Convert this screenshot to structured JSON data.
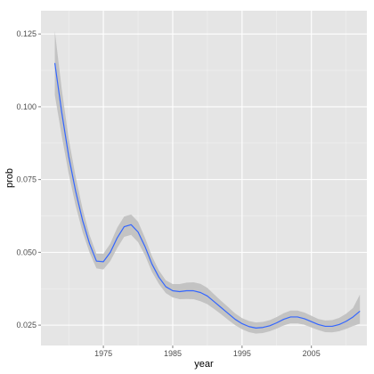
{
  "chart_data": {
    "type": "line",
    "title": "",
    "xlabel": "year",
    "ylabel": "prob",
    "xlim": [
      1966,
      2013
    ],
    "ylim": [
      0.018,
      0.133
    ],
    "x_ticks": [
      1975,
      1985,
      1995,
      2005
    ],
    "x_tick_labels": [
      "1975",
      "1985",
      "1995",
      "2005"
    ],
    "y_ticks": [
      0.025,
      0.05,
      0.075,
      0.1,
      0.125
    ],
    "y_tick_labels": [
      "0.025",
      "0.050",
      "0.075",
      "0.100",
      "0.125"
    ],
    "grid": true,
    "background_color": "#e5e5e5",
    "grid_color": "#ffffff",
    "line_color": "#3366ff",
    "ribbon_color": "#bdbdbd",
    "series": [
      {
        "x": [
          1968,
          1969,
          1970,
          1971,
          1972,
          1973,
          1974,
          1975,
          1976,
          1977,
          1978,
          1979,
          1980,
          1981,
          1982,
          1983,
          1984,
          1985,
          1986,
          1987,
          1988,
          1989,
          1990,
          1991,
          1992,
          1993,
          1994,
          1995,
          1996,
          1997,
          1998,
          1999,
          2000,
          2001,
          2002,
          2003,
          2004,
          2005,
          2006,
          2007,
          2008,
          2009,
          2010,
          2011,
          2012
        ],
        "y": [
          0.115,
          0.098,
          0.083,
          0.071,
          0.061,
          0.053,
          0.047,
          0.0468,
          0.05,
          0.055,
          0.0588,
          0.0595,
          0.057,
          0.052,
          0.046,
          0.0415,
          0.0382,
          0.0368,
          0.0365,
          0.0368,
          0.0368,
          0.0362,
          0.035,
          0.033,
          0.031,
          0.029,
          0.027,
          0.0255,
          0.0245,
          0.024,
          0.0242,
          0.0248,
          0.0258,
          0.027,
          0.0278,
          0.0278,
          0.0272,
          0.0262,
          0.0252,
          0.0246,
          0.0246,
          0.0252,
          0.0263,
          0.0278,
          0.0298
        ],
        "lower": [
          0.104,
          0.09,
          0.077,
          0.066,
          0.057,
          0.05,
          0.0445,
          0.0441,
          0.047,
          0.0515,
          0.0553,
          0.056,
          0.0535,
          0.049,
          0.0433,
          0.0392,
          0.036,
          0.0345,
          0.0339,
          0.034,
          0.0339,
          0.0332,
          0.0322,
          0.0305,
          0.0287,
          0.0268,
          0.025,
          0.0236,
          0.0226,
          0.0221,
          0.0223,
          0.0229,
          0.0238,
          0.0249,
          0.0256,
          0.0256,
          0.0251,
          0.0242,
          0.0233,
          0.0226,
          0.0225,
          0.0229,
          0.0237,
          0.0247,
          0.0255
        ],
        "upper": [
          0.126,
          0.106,
          0.089,
          0.076,
          0.065,
          0.056,
          0.0495,
          0.0495,
          0.053,
          0.0585,
          0.0623,
          0.063,
          0.0605,
          0.055,
          0.0487,
          0.0438,
          0.0404,
          0.0391,
          0.0391,
          0.0396,
          0.0397,
          0.0392,
          0.0378,
          0.0355,
          0.0333,
          0.0312,
          0.029,
          0.0274,
          0.0264,
          0.0259,
          0.0261,
          0.0267,
          0.0278,
          0.0291,
          0.03,
          0.03,
          0.0293,
          0.0282,
          0.0271,
          0.0266,
          0.0267,
          0.0275,
          0.0289,
          0.0309,
          0.0355
        ]
      }
    ]
  }
}
